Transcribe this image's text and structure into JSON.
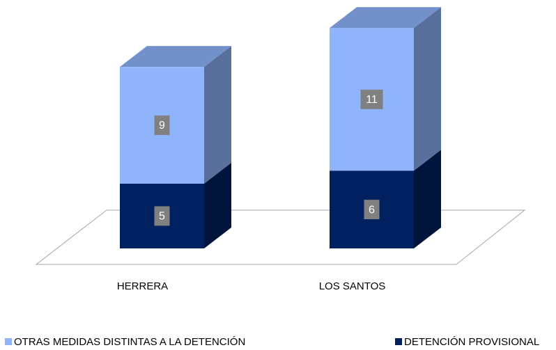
{
  "chart_data": {
    "type": "bar3d_stacked",
    "categories": [
      "HERRERA",
      "LOS SANTOS"
    ],
    "series": [
      {
        "name": "OTRAS MEDIDAS DISTINTAS A LA DETENCIÓN",
        "color": "#8fb4fb",
        "values": [
          9,
          11
        ]
      },
      {
        "name": "DETENCIÓN PROVISIONAL",
        "color": "#002060",
        "values": [
          5,
          6
        ]
      }
    ]
  }
}
